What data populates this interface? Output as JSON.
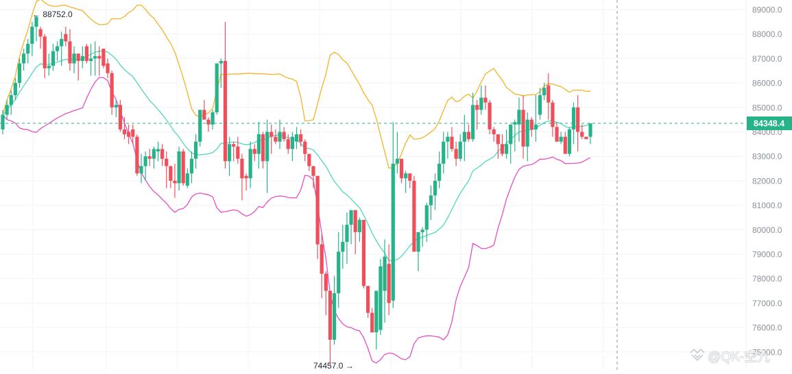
{
  "chart_data": {
    "type": "candlestick",
    "title": "",
    "xlabel": "",
    "ylabel": "",
    "ylim": [
      74300,
      89400
    ],
    "y_ticks": [
      89000,
      88000,
      87000,
      86000,
      85000,
      84000,
      83000,
      82000,
      81000,
      80000,
      79000,
      78000,
      77000,
      76000,
      75000
    ],
    "y_tick_labels": [
      "89000.0",
      "88000.0",
      "87000.0",
      "86000.0",
      "85000.0",
      "84000.0",
      "83000.0",
      "82000.0",
      "81000.0",
      "80000.0",
      "79000.0",
      "78000.0",
      "77000.0",
      "76000.0",
      "75000.0"
    ],
    "current_price": 84348.4,
    "current_price_label": "84348.4",
    "high_annotation": {
      "label": "← 88752.0",
      "value": 88752.0
    },
    "low_annotation": {
      "label": "74457.0 →",
      "value": 74457.0
    },
    "colors": {
      "up": "#26b38a",
      "down": "#ef4f5b",
      "upper_band": "#f5b324",
      "middle_band": "#4fd8bd",
      "lower_band": "#e34fc8",
      "price_line": "#26b38a",
      "grid": "#f2f3f5",
      "axis_text": "#8a8f99",
      "crosshair": "#8a8f99"
    },
    "indicator": "Bollinger Bands",
    "series": [
      {
        "name": "candles",
        "ohlc": [
          [
            84100,
            84900,
            83900,
            84700
          ],
          [
            84700,
            85300,
            84500,
            85100
          ],
          [
            85100,
            85700,
            84700,
            85500
          ],
          [
            85500,
            86200,
            85300,
            86000
          ],
          [
            86000,
            87000,
            85800,
            86800
          ],
          [
            86800,
            87400,
            86500,
            87200
          ],
          [
            87200,
            87800,
            86800,
            87600
          ],
          [
            87600,
            88500,
            87100,
            88300
          ],
          [
            88300,
            88752,
            87700,
            88700
          ],
          [
            88200,
            88300,
            87400,
            87900
          ],
          [
            87900,
            88000,
            86200,
            86600
          ],
          [
            86600,
            87200,
            86300,
            86700
          ],
          [
            86700,
            87600,
            86500,
            87300
          ],
          [
            87300,
            87700,
            86900,
            87500
          ],
          [
            87500,
            88100,
            86700,
            87800
          ],
          [
            88000,
            88300,
            87500,
            87700
          ],
          [
            87700,
            88200,
            86500,
            86800
          ],
          [
            86800,
            87500,
            86400,
            87200
          ],
          [
            87200,
            87200,
            86100,
            86900
          ],
          [
            86900,
            87500,
            86600,
            87100
          ],
          [
            87500,
            87600,
            86800,
            86900
          ],
          [
            86900,
            87600,
            86300,
            87000
          ],
          [
            87000,
            87700,
            86300,
            87100
          ],
          [
            87100,
            87500,
            86300,
            87000
          ],
          [
            87400,
            87300,
            86600,
            86700
          ],
          [
            86800,
            87000,
            86200,
            86400
          ],
          [
            86400,
            86500,
            84700,
            85000
          ],
          [
            85000,
            85300,
            84600,
            85100
          ],
          [
            85100,
            85300,
            84000,
            84100
          ],
          [
            84100,
            84600,
            83700,
            83900
          ],
          [
            84000,
            84300,
            83500,
            83800
          ],
          [
            84100,
            84300,
            83500,
            83800
          ],
          [
            83800,
            83900,
            82200,
            82300
          ],
          [
            82300,
            83100,
            81900,
            82600
          ],
          [
            82600,
            83200,
            82000,
            83000
          ],
          [
            83000,
            83300,
            82600,
            82900
          ],
          [
            82900,
            83400,
            82500,
            83300
          ],
          [
            83200,
            83600,
            82800,
            83300
          ],
          [
            83300,
            83500,
            82600,
            82900
          ],
          [
            82900,
            83200,
            81700,
            82600
          ],
          [
            82600,
            82500,
            81700,
            82000
          ],
          [
            82000,
            82700,
            81300,
            81900
          ],
          [
            81900,
            83400,
            81600,
            83200
          ],
          [
            83200,
            83300,
            81800,
            81900
          ],
          [
            81800,
            82500,
            81700,
            82300
          ],
          [
            82300,
            83200,
            81900,
            82900
          ],
          [
            82900,
            83900,
            82500,
            83600
          ],
          [
            83600,
            84500,
            83400,
            84900
          ],
          [
            84900,
            85300,
            84700,
            84500
          ],
          [
            84500,
            84600,
            84000,
            84300
          ],
          [
            84300,
            84900,
            84100,
            84800
          ],
          [
            84800,
            86500,
            84700,
            86800
          ],
          [
            86800,
            87000,
            85800,
            86900
          ],
          [
            86900,
            88500,
            82500,
            82800
          ],
          [
            82800,
            83800,
            82200,
            83500
          ],
          [
            83500,
            83600,
            82800,
            83400
          ],
          [
            83400,
            83800,
            82700,
            82900
          ],
          [
            82900,
            83100,
            81200,
            82100
          ],
          [
            82200,
            82300,
            81600,
            82100
          ],
          [
            82100,
            83600,
            81700,
            83300
          ],
          [
            83300,
            83500,
            82800,
            83100
          ],
          [
            83100,
            84400,
            82500,
            83900
          ],
          [
            83900,
            84000,
            82500,
            82800
          ],
          [
            82800,
            84500,
            81500,
            84000
          ],
          [
            84000,
            84300,
            83100,
            83800
          ],
          [
            83800,
            84100,
            83500,
            83600
          ],
          [
            83600,
            84500,
            83300,
            84000
          ],
          [
            84000,
            84200,
            83600,
            83700
          ],
          [
            83700,
            83900,
            83100,
            83300
          ],
          [
            83300,
            84000,
            82800,
            83800
          ],
          [
            83600,
            84200,
            83300,
            83900
          ],
          [
            83900,
            84100,
            83400,
            83600
          ],
          [
            83600,
            83700,
            82800,
            83100
          ],
          [
            83100,
            82900,
            82400,
            82600
          ],
          [
            82600,
            82500,
            81700,
            82200
          ],
          [
            82200,
            82000,
            78800,
            79400
          ],
          [
            79400,
            79800,
            77200,
            78200
          ],
          [
            78200,
            78300,
            76500,
            77500
          ],
          [
            77500,
            77200,
            74457,
            75500
          ],
          [
            75500,
            78100,
            75300,
            77400
          ],
          [
            77400,
            79900,
            76800,
            79100
          ],
          [
            79100,
            80200,
            78400,
            79500
          ],
          [
            79500,
            80700,
            78600,
            80200
          ],
          [
            80200,
            80800,
            79400,
            80800
          ],
          [
            80800,
            80500,
            79000,
            79900
          ],
          [
            79900,
            80500,
            79500,
            80400
          ],
          [
            80400,
            80400,
            77600,
            77700
          ],
          [
            77700,
            77300,
            76400,
            76600
          ],
          [
            76600,
            76800,
            75900,
            75800
          ],
          [
            75800,
            76800,
            75100,
            77500
          ],
          [
            75900,
            78800,
            75700,
            78500
          ],
          [
            77500,
            79600,
            76200,
            78900
          ],
          [
            78600,
            79400,
            76500,
            77000
          ],
          [
            77100,
            84400,
            76800,
            82700
          ],
          [
            82700,
            84000,
            82300,
            82900
          ],
          [
            82900,
            82800,
            81900,
            82100
          ],
          [
            82100,
            82400,
            81500,
            82300
          ],
          [
            82300,
            82100,
            81700,
            82000
          ],
          [
            82000,
            82200,
            79400,
            79100
          ],
          [
            79100,
            79100,
            78300,
            79900
          ],
          [
            79900,
            80100,
            79300,
            80000
          ],
          [
            80000,
            81100,
            79500,
            81000
          ],
          [
            81000,
            81800,
            80400,
            81400
          ],
          [
            81400,
            82300,
            80800,
            82000
          ],
          [
            82000,
            83200,
            81700,
            82700
          ],
          [
            82700,
            84000,
            82300,
            83600
          ],
          [
            83600,
            84000,
            82900,
            83800
          ],
          [
            83800,
            84200,
            83200,
            83300
          ],
          [
            83300,
            83600,
            82600,
            82900
          ],
          [
            82900,
            83900,
            82800,
            83600
          ],
          [
            83600,
            84700,
            82800,
            84000
          ],
          [
            84000,
            84300,
            83600,
            83700
          ],
          [
            83700,
            85600,
            83600,
            85100
          ],
          [
            85100,
            85300,
            84100,
            84900
          ],
          [
            84900,
            85900,
            84700,
            85400
          ],
          [
            85400,
            85900,
            84900,
            85200
          ],
          [
            85200,
            85300,
            83900,
            84100
          ],
          [
            84100,
            84200,
            83600,
            83900
          ],
          [
            83900,
            83800,
            82900,
            83500
          ],
          [
            83500,
            83900,
            83000,
            83100
          ],
          [
            83100,
            84100,
            82900,
            83500
          ],
          [
            83500,
            84100,
            82700,
            84300
          ],
          [
            84300,
            84500,
            83200,
            84400
          ],
          [
            84300,
            85400,
            83600,
            84900
          ],
          [
            84900,
            85500,
            82900,
            83400
          ],
          [
            83400,
            84800,
            82800,
            84500
          ],
          [
            84500,
            84600,
            83800,
            84100
          ],
          [
            84100,
            85500,
            83600,
            84300
          ],
          [
            84700,
            85800,
            84500,
            85500
          ],
          [
            85500,
            86000,
            85300,
            85800
          ],
          [
            85900,
            86400,
            84500,
            85200
          ],
          [
            85200,
            85300,
            83800,
            84200
          ],
          [
            84200,
            84400,
            83600,
            83600
          ],
          [
            83600,
            84000,
            83500,
            83800
          ],
          [
            83800,
            84000,
            83200,
            83100
          ],
          [
            83100,
            84200,
            83000,
            84100
          ],
          [
            84100,
            85200,
            83500,
            85000
          ],
          [
            85000,
            85500,
            83200,
            84000
          ],
          [
            84000,
            84300,
            83700,
            83800
          ],
          [
            83800,
            83800,
            83700,
            83700
          ],
          [
            83800,
            84300,
            83500,
            84348.4
          ]
        ]
      }
    ]
  },
  "axis": {
    "price_labels": [
      "89000.0",
      "88000.0",
      "87000.0",
      "86000.0",
      "85000.0",
      "84000.0",
      "83000.0",
      "82000.0",
      "81000.0",
      "80000.0",
      "79000.0",
      "78000.0",
      "77000.0",
      "76000.0",
      "75000.0"
    ]
  },
  "current_price_badge": "84348.4",
  "annotations": {
    "high": "← 88752.0",
    "low": "74457.0 →"
  },
  "watermark": {
    "text": "@QK-空九",
    "icon": "diamond-logo-icon"
  }
}
